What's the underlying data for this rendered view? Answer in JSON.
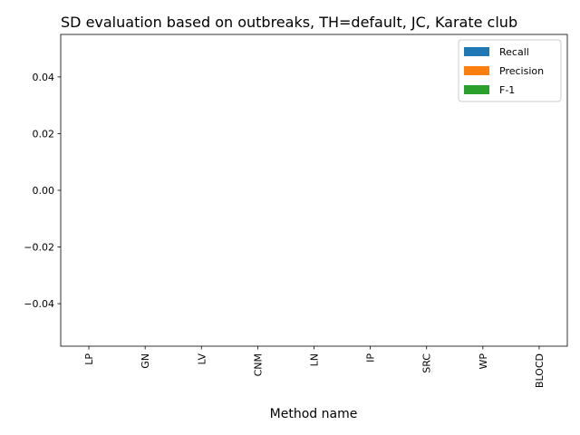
{
  "chart_data": {
    "type": "bar",
    "title": "SD evaluation based on outbreaks, TH=default, JC, Karate club",
    "xlabel": "Method name",
    "ylabel": "",
    "categories": [
      "LP",
      "GN",
      "LV",
      "CNM",
      "LN",
      "IP",
      "SRC",
      "WP",
      "BLOCD"
    ],
    "series": [
      {
        "name": "Recall",
        "color": "#1f77b4",
        "values": [
          0,
          0,
          0,
          0,
          0,
          0,
          0,
          0,
          0
        ]
      },
      {
        "name": "Precision",
        "color": "#ff7f0e",
        "values": [
          0,
          0,
          0,
          0,
          0,
          0,
          0,
          0,
          0
        ]
      },
      {
        "name": "F-1",
        "color": "#2ca02c",
        "values": [
          0,
          0,
          0,
          0,
          0,
          0,
          0,
          0,
          0
        ]
      }
    ],
    "ylim": [
      -0.055,
      0.055
    ],
    "yticks": [
      "0.04",
      "0.02",
      "0.00",
      "−0.02",
      "−0.04"
    ],
    "ytick_values": [
      0.04,
      0.02,
      0.0,
      -0.02,
      -0.04
    ],
    "grid": false,
    "legend_position": "top-right"
  }
}
